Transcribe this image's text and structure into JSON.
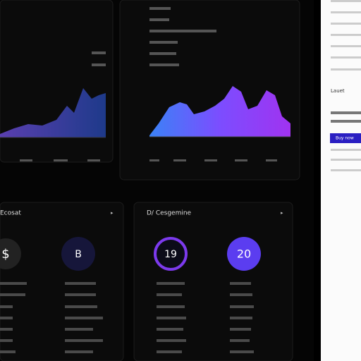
{
  "panels": [
    {
      "title": "Ecosat"
    },
    {
      "title": "D/ Cesgemine"
    }
  ],
  "stats": [
    {
      "label": "$"
    },
    {
      "label": "B"
    },
    {
      "label": "19"
    },
    {
      "label": "20"
    }
  ],
  "sidebar": {
    "heading": "Lauet",
    "button": "Buy now"
  }
}
